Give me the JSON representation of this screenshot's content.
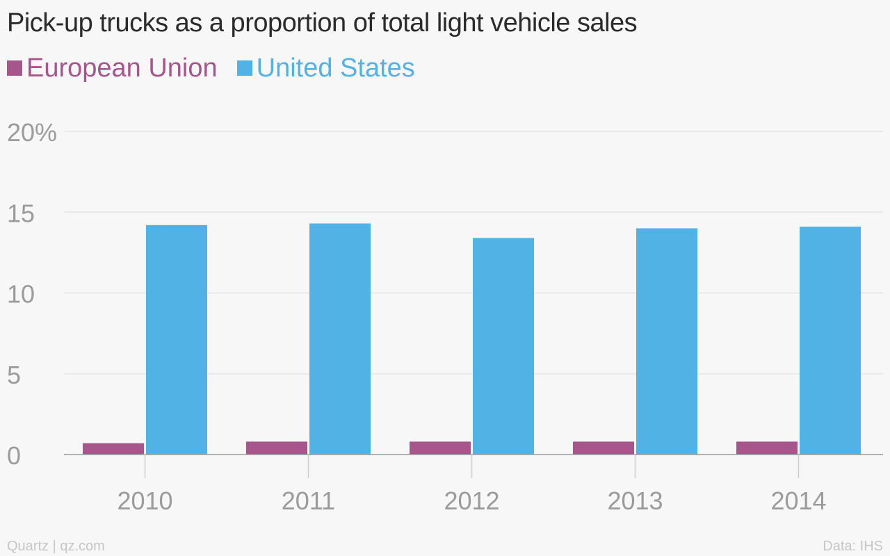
{
  "header": {
    "title": "Pick-up trucks as a proportion of total light vehicle sales"
  },
  "legend": [
    {
      "label": "European Union",
      "color": "#a6568a"
    },
    {
      "label": "United States",
      "color": "#51b2e5"
    }
  ],
  "footer": {
    "credit": "Quartz | qz.com",
    "source": "Data: IHS"
  },
  "chart_data": {
    "type": "bar",
    "categories": [
      "2010",
      "2011",
      "2012",
      "2013",
      "2014"
    ],
    "series": [
      {
        "name": "European Union",
        "values": [
          0.7,
          0.8,
          0.8,
          0.8,
          0.8
        ],
        "color": "#a6568a"
      },
      {
        "name": "United States",
        "values": [
          14.2,
          14.3,
          13.4,
          14.0,
          14.1
        ],
        "color": "#51b2e5"
      }
    ],
    "ylim": [
      0,
      20
    ],
    "yticks": [
      {
        "value": 0,
        "label": "0"
      },
      {
        "value": 5,
        "label": "5"
      },
      {
        "value": 10,
        "label": "10"
      },
      {
        "value": 15,
        "label": "15"
      },
      {
        "value": 20,
        "label": "20%"
      }
    ],
    "grid": true,
    "legend_position": "top-left"
  }
}
